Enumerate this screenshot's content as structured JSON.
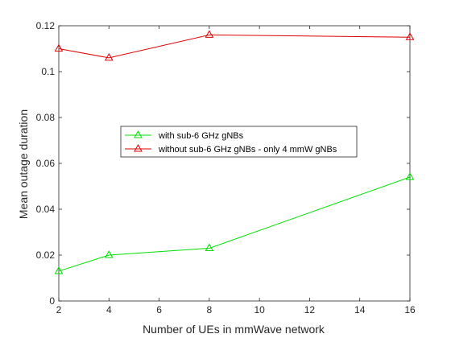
{
  "chart_data": {
    "type": "line",
    "title": "",
    "xlabel": "Number of UEs in mmWave network",
    "ylabel": "Mean outage duration",
    "xlim": [
      2,
      16
    ],
    "ylim": [
      0,
      0.12
    ],
    "xticks": [
      2,
      4,
      6,
      8,
      10,
      12,
      14,
      16
    ],
    "xtick_labels": [
      "2",
      "4",
      "6",
      "8",
      "10",
      "12",
      "14",
      "16"
    ],
    "yticks": [
      0,
      0.02,
      0.04,
      0.06,
      0.08,
      0.1,
      0.12
    ],
    "ytick_labels": [
      "0",
      "0.02",
      "0.04",
      "0.06",
      "0.08",
      "0.1",
      "0.12"
    ],
    "grid": false,
    "legend_position": "center",
    "x": [
      2,
      4,
      8,
      16
    ],
    "series": [
      {
        "name": "with sub-6 GHz gNBs",
        "color": "#00e000",
        "marker": "triangle",
        "values": [
          0.013,
          0.02,
          0.023,
          0.054
        ]
      },
      {
        "name": "without sub-6 GHz gNBs - only 4 mmW gNBs",
        "color": "#e00000",
        "marker": "triangle",
        "values": [
          0.11,
          0.106,
          0.116,
          0.115
        ]
      }
    ]
  }
}
